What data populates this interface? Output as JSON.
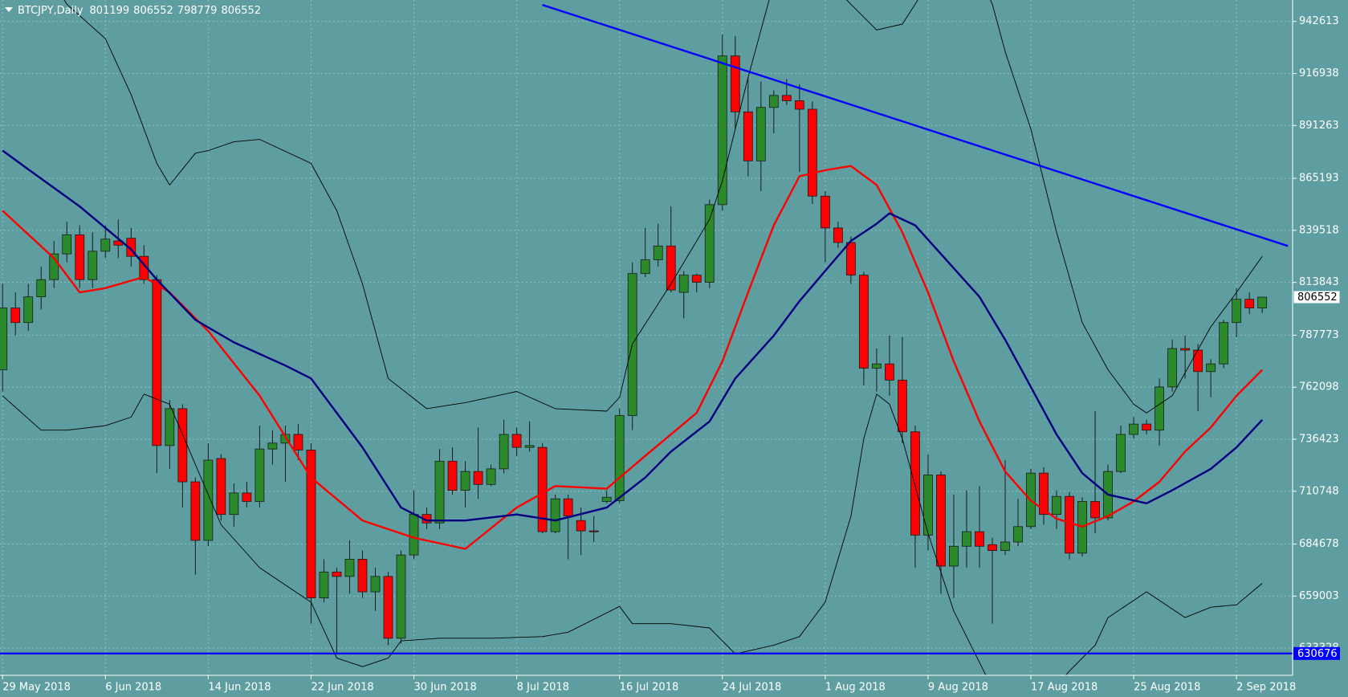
{
  "chart_data": {
    "type": "candlestick",
    "title": "BTCJPY,Daily",
    "background": "#5f9ea0",
    "up_color": "#2b8a2b",
    "down_color": "#ff0000",
    "grid": true,
    "categories": [
      "29 May 2018",
      null,
      null,
      null,
      null,
      null,
      null,
      null,
      "6 Jun 2018",
      null,
      null,
      null,
      null,
      null,
      null,
      null,
      "14 Jun 2018",
      null,
      null,
      null,
      null,
      null,
      null,
      null,
      "22 Jun 2018",
      null,
      null,
      null,
      null,
      null,
      null,
      null,
      "30 Jun 2018",
      null,
      null,
      null,
      null,
      null,
      null,
      null,
      "8 Jul 2018",
      null,
      null,
      null,
      null,
      null,
      null,
      null,
      "16 Jul 2018",
      null,
      null,
      null,
      null,
      null,
      null,
      null,
      "24 Jul 2018",
      null,
      null,
      null,
      null,
      null,
      null,
      null,
      "1 Aug 2018",
      null,
      null,
      null,
      null,
      null,
      null,
      null,
      "9 Aug 2018",
      null,
      null,
      null,
      null,
      null,
      null,
      null,
      "17 Aug 2018",
      null,
      null,
      null,
      null,
      null,
      null,
      null,
      "25 Aug 2018",
      null,
      null,
      null,
      null,
      null,
      null,
      null,
      "2 Sep 2018",
      null,
      null
    ],
    "open": [
      770700,
      801200,
      794000,
      806700,
      815200,
      827900,
      837300,
      815200,
      829200,
      834300,
      835600,
      826700,
      815200,
      733300,
      751500,
      715400,
      686500,
      726900,
      699300,
      709900,
      705700,
      731600,
      734500,
      738800,
      731100,
      658100,
      670900,
      668700,
      677200,
      661100,
      668700,
      638200,
      679300,
      699300,
      695100,
      725600,
      711200,
      720500,
      714100,
      721800,
      738800,
      732400,
      732400,
      690800,
      707000,
      696300,
      691200,
      705700,
      706100,
      748100,
      818200,
      825000,
      831800,
      808900,
      817400,
      813900,
      852200,
      925600,
      898000,
      873800,
      900200,
      906100,
      903500,
      899300,
      856400,
      840700,
      833500,
      817400,
      771500,
      773600,
      765600,
      740100,
      689100,
      718800,
      673800,
      683600,
      690800,
      684400,
      681500,
      685700,
      693300,
      719700,
      699300,
      708200,
      680200,
      705700,
      697600,
      720500,
      738800,
      743900,
      740900,
      762200,
      781200,
      780400,
      769800,
      773600,
      794000,
      805500,
      801199
    ],
    "high": [
      813100,
      808900,
      813100,
      821600,
      834300,
      843700,
      842000,
      838600,
      842000,
      844900,
      840700,
      832200,
      817400,
      755800,
      753700,
      717500,
      734500,
      729000,
      714600,
      715400,
      743100,
      740900,
      743100,
      743900,
      734500,
      677200,
      673000,
      686500,
      681500,
      673000,
      670900,
      681500,
      711200,
      702700,
      731600,
      732400,
      725600,
      742200,
      723900,
      746000,
      742200,
      745200,
      734500,
      709100,
      709100,
      702700,
      698500,
      711200,
      751500,
      823700,
      840700,
      842800,
      851300,
      819400,
      818200,
      854700,
      936200,
      935400,
      915000,
      912900,
      908600,
      914200,
      911600,
      903100,
      858900,
      843700,
      836500,
      819000,
      781200,
      787600,
      786800,
      743100,
      729000,
      720500,
      709100,
      711200,
      713300,
      687800,
      726100,
      707000,
      721800,
      722600,
      711200,
      710300,
      707800,
      750300,
      723900,
      743100,
      747300,
      746000,
      766400,
      785500,
      787600,
      783400,
      775900,
      795300,
      811000,
      808900,
      806552
    ],
    "low": [
      760000,
      787600,
      789800,
      800400,
      811000,
      823700,
      811000,
      811000,
      825800,
      825800,
      821600,
      813100,
      719700,
      721800,
      702700,
      669600,
      683600,
      696300,
      693300,
      702700,
      702700,
      723900,
      715400,
      726100,
      645400,
      656000,
      630500,
      660200,
      658100,
      651700,
      634800,
      635600,
      677200,
      692100,
      692100,
      709100,
      702700,
      707000,
      713300,
      719700,
      728200,
      730300,
      690000,
      690000,
      677200,
      679300,
      685700,
      704800,
      704800,
      740900,
      816500,
      821600,
      808900,
      796100,
      808900,
      811000,
      849200,
      889500,
      866200,
      858900,
      887400,
      901400,
      868300,
      852600,
      823700,
      830900,
      813100,
      763000,
      760000,
      757900,
      734500,
      673000,
      681500,
      660200,
      658100,
      673000,
      673000,
      645400,
      679300,
      683600,
      692100,
      694200,
      692100,
      677200,
      678500,
      690000,
      696300,
      719700,
      736700,
      738800,
      733300,
      760000,
      766400,
      750300,
      757100,
      771500,
      786800,
      798200,
      798779
    ],
    "close": [
      801200,
      794000,
      806700,
      815200,
      827900,
      837300,
      815200,
      829200,
      835200,
      832200,
      826700,
      815200,
      733300,
      751500,
      715400,
      686500,
      726100,
      699300,
      709900,
      705700,
      731600,
      734500,
      738800,
      731100,
      658100,
      670900,
      668700,
      677200,
      661100,
      668700,
      638200,
      679300,
      699300,
      695100,
      725600,
      711200,
      720500,
      714100,
      721800,
      738800,
      732400,
      733300,
      690800,
      707000,
      698500,
      691200,
      690800,
      707800,
      748100,
      818200,
      825000,
      831800,
      810100,
      817400,
      813900,
      852200,
      925600,
      898000,
      873800,
      900200,
      906100,
      903500,
      899300,
      856400,
      840700,
      833500,
      817400,
      771500,
      773600,
      765600,
      740100,
      689100,
      718800,
      673800,
      683600,
      690800,
      683600,
      681500,
      685700,
      693300,
      719700,
      699300,
      708200,
      680200,
      705700,
      697600,
      720500,
      738800,
      743900,
      740900,
      762200,
      781200,
      780400,
      769800,
      773600,
      794000,
      805500,
      801200,
      806552
    ],
    "overlays": [
      {
        "type": "line",
        "color": "#ff0000",
        "width": 2.4,
        "x": [
          0,
          4,
          6,
          8,
          11,
          13,
          16,
          20,
          24,
          28,
          32,
          36,
          40,
          43,
          47,
          50,
          54,
          56,
          58,
          60,
          62,
          64,
          66,
          68,
          70,
          72,
          74,
          76,
          78,
          80,
          82,
          84,
          86,
          88,
          90,
          92,
          94,
          96,
          98
        ],
        "values": [
          849200,
          825800,
          808900,
          811000,
          816500,
          808900,
          789800,
          757900,
          717500,
          696300,
          687800,
          682300,
          702700,
          713300,
          712000,
          728200,
          749400,
          774900,
          808900,
          842000,
          866200,
          869200,
          871300,
          861900,
          838600,
          808900,
          774900,
          745200,
          720500,
          706100,
          697200,
          693300,
          698500,
          705700,
          715400,
          730300,
          742200,
          757900,
          770700
        ]
      },
      {
        "type": "line",
        "color": "#000080",
        "width": 2.4,
        "x": [
          0,
          2,
          6,
          10,
          12,
          15,
          18,
          22,
          24,
          28,
          31,
          33,
          36,
          40,
          43,
          47,
          50,
          52,
          55,
          57,
          60,
          62,
          64,
          66,
          68,
          69,
          71,
          73,
          76,
          78,
          80,
          82,
          84,
          86,
          89,
          91,
          94,
          96,
          98
        ],
        "values": [
          878900,
          869600,
          851300,
          830100,
          815200,
          795300,
          784200,
          772800,
          766400,
          732400,
          702700,
          696300,
          696300,
          699300,
          696300,
          702700,
          717500,
          730300,
          745200,
          766400,
          787600,
          804600,
          819500,
          834300,
          842800,
          847900,
          842000,
          827900,
          806700,
          785500,
          762200,
          738800,
          719700,
          709100,
          704800,
          711200,
          721800,
          732400,
          746000
        ]
      },
      {
        "type": "line",
        "color": "#000000",
        "width": 0.9,
        "x": [
          4,
          5,
          8,
          10,
          12,
          13,
          15,
          16,
          18,
          20,
          24,
          26,
          28,
          30,
          33,
          36,
          40,
          43,
          47,
          48,
          49,
          52,
          55,
          56,
          58,
          60,
          61,
          63,
          65,
          66,
          68,
          70,
          71,
          72,
          74,
          76,
          77,
          78,
          80,
          82,
          84,
          86,
          88,
          89,
          91,
          94,
          96,
          98
        ],
        "values": [
          961700,
          951100,
          934100,
          906500,
          872600,
          861900,
          877600,
          878900,
          883200,
          884400,
          872600,
          849200,
          813100,
          766400,
          751500,
          754500,
          760000,
          751500,
          750300,
          757100,
          783400,
          813100,
          844900,
          864000,
          915000,
          961700,
          978700,
          978700,
          957500,
          951100,
          938400,
          941300,
          951100,
          961700,
          978700,
          965900,
          951100,
          927700,
          889500,
          838600,
          794000,
          770700,
          753700,
          749400,
          757900,
          791900,
          808900,
          826700
        ]
      },
      {
        "type": "line",
        "color": "#000000",
        "width": 0.9,
        "x": [
          0,
          3,
          5,
          8,
          10,
          11,
          13,
          15,
          17,
          20,
          24,
          26,
          28,
          30,
          31,
          34,
          38,
          42,
          44,
          48,
          49,
          52,
          55,
          57,
          60,
          62,
          64,
          66,
          67,
          68,
          69,
          70,
          72,
          74,
          76,
          77,
          80,
          83,
          85,
          86,
          89,
          92,
          94,
          96,
          98
        ],
        "values": [
          757900,
          740900,
          740900,
          743100,
          747300,
          758700,
          753700,
          723900,
          694200,
          673000,
          656000,
          628400,
          624200,
          628400,
          636900,
          638200,
          638200,
          639000,
          641200,
          653900,
          645400,
          645400,
          643300,
          630500,
          634800,
          639000,
          656000,
          698500,
          736700,
          758700,
          753700,
          736700,
          690000,
          651700,
          626300,
          613500,
          600800,
          622000,
          634800,
          648400,
          661100,
          648400,
          653500,
          654700,
          665300
        ]
      }
    ],
    "trendline": {
      "color": "#0000ff",
      "x": [
        42,
        100
      ],
      "values": [
        950800,
        831800
      ]
    },
    "hline": {
      "value": 630676,
      "color": "#0000ff"
    },
    "ylim": [
      619900,
      953200
    ],
    "yticks": [
      942613,
      916938,
      891263,
      865193,
      839518,
      813843,
      787773,
      762098,
      736423,
      710748,
      684678,
      659003,
      633328
    ]
  }
}
